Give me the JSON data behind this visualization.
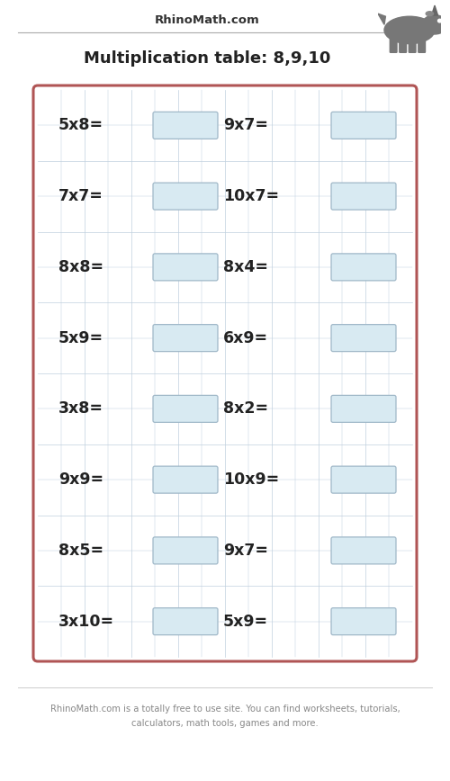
{
  "title": "Multiplication table: 8,9,10",
  "header_text": "RhinoMath.com",
  "footer_text": "RhinoMath.com is a totally free to use site. You can find worksheets, tutorials,\ncalculators, math tools, games and more.",
  "problems_left": [
    "5x8=",
    "7x7=",
    "8x8=",
    "5x9=",
    "3x8=",
    "9x9=",
    "8x5=",
    "3x10="
  ],
  "problems_right": [
    "9x7=",
    "10x7=",
    "8x4=",
    "6x9=",
    "8x2=",
    "10x9=",
    "9x7=",
    "5x9="
  ],
  "bg_color": "#ffffff",
  "grid_color": "#c0d0df",
  "box_fill_color": "#d8eaf2",
  "box_edge_color": "#a0b8c8",
  "outer_box_edge_color": "#b05555",
  "outer_box_fill_color": "#ffffff",
  "text_color": "#222222",
  "header_color": "#333333",
  "footer_color": "#888888",
  "fig_width": 5.0,
  "fig_height": 8.68,
  "dpi": 100
}
